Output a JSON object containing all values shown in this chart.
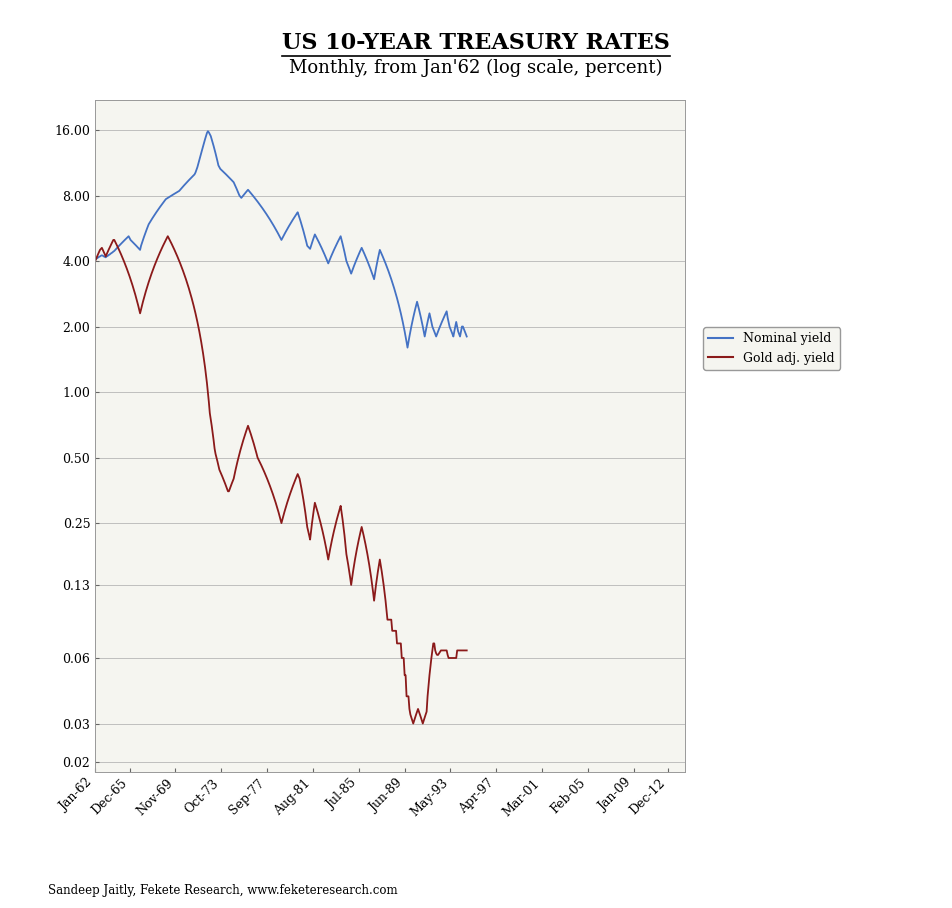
{
  "title": "US 10-YEAR TREASURY RATES",
  "subtitle": "Monthly, from Jan'62 (log scale, percent)",
  "footnote": "Sandeep Jaitly, Fekete Research, www.feketeresearch.com",
  "title_fontsize": 16,
  "subtitle_fontsize": 13,
  "yticks": [
    0.02,
    0.03,
    0.06,
    0.13,
    0.25,
    0.5,
    1.0,
    2.0,
    4.0,
    8.0,
    16.0
  ],
  "ytick_labels": [
    "0.02",
    "0.03",
    "0.06",
    "0.13",
    "0.25",
    "0.50",
    "1.00",
    "2.00",
    "4.00",
    "8.00",
    "16.00"
  ],
  "ylim_log": [
    0.018,
    22.0
  ],
  "xtick_positions": [
    1962,
    1965,
    1969,
    1973,
    1977,
    1981,
    1985,
    1989,
    1993,
    1997,
    2001,
    2005,
    2009,
    2012
  ],
  "xtick_labels": [
    "Jan-62",
    "Dec-65",
    "Nov-69",
    "Oct-73",
    "Sep-77",
    "Aug-81",
    "Jul-85",
    "Jun-89",
    "May-93",
    "Apr-97",
    "Mar-01",
    "Feb-05",
    "Jan-09",
    "Dec-12"
  ],
  "nominal_color": "#4472C4",
  "gold_color": "#8B1A1A",
  "nominal_label": "Nominal yield",
  "gold_label": "Gold adj. yield",
  "line_width": 1.3,
  "background_color": "#FFFFFF",
  "plot_bg_color": "#F5F5F0",
  "nominal_yield": [
    4.06,
    4.1,
    4.12,
    4.15,
    4.18,
    4.2,
    4.23,
    4.25,
    4.23,
    4.2,
    4.18,
    4.16,
    4.2,
    4.22,
    4.26,
    4.28,
    4.32,
    4.35,
    4.38,
    4.42,
    4.45,
    4.5,
    4.55,
    4.6,
    4.65,
    4.7,
    4.75,
    4.8,
    4.85,
    4.9,
    4.95,
    5.0,
    5.05,
    5.1,
    5.15,
    5.2,
    5.1,
    5.0,
    4.95,
    4.9,
    4.85,
    4.8,
    4.75,
    4.7,
    4.65,
    4.6,
    4.55,
    4.5,
    4.7,
    4.85,
    5.0,
    5.15,
    5.3,
    5.45,
    5.6,
    5.75,
    5.9,
    6.0,
    6.1,
    6.2,
    6.3,
    6.4,
    6.5,
    6.6,
    6.7,
    6.8,
    6.9,
    7.0,
    7.1,
    7.2,
    7.3,
    7.4,
    7.5,
    7.6,
    7.7,
    7.75,
    7.8,
    7.85,
    7.9,
    7.95,
    8.0,
    8.05,
    8.1,
    8.15,
    8.2,
    8.25,
    8.3,
    8.35,
    8.4,
    8.5,
    8.6,
    8.7,
    8.8,
    8.9,
    9.0,
    9.1,
    9.2,
    9.3,
    9.4,
    9.5,
    9.6,
    9.7,
    9.8,
    9.9,
    10.0,
    10.2,
    10.5,
    10.8,
    11.2,
    11.6,
    12.0,
    12.5,
    13.0,
    13.5,
    14.0,
    14.5,
    15.0,
    15.5,
    15.8,
    15.6,
    15.3,
    15.0,
    14.5,
    14.0,
    13.5,
    13.0,
    12.5,
    12.0,
    11.5,
    11.0,
    10.8,
    10.6,
    10.5,
    10.4,
    10.3,
    10.2,
    10.1,
    10.0,
    9.9,
    9.8,
    9.7,
    9.6,
    9.5,
    9.4,
    9.3,
    9.2,
    9.0,
    8.8,
    8.6,
    8.4,
    8.2,
    8.0,
    7.9,
    7.8,
    7.9,
    8.0,
    8.1,
    8.2,
    8.3,
    8.4,
    8.5,
    8.4,
    8.3,
    8.2,
    8.1,
    8.0,
    7.9,
    7.8,
    7.7,
    7.6,
    7.5,
    7.4,
    7.3,
    7.2,
    7.1,
    7.0,
    6.9,
    6.8,
    6.7,
    6.6,
    6.5,
    6.4,
    6.3,
    6.2,
    6.1,
    6.0,
    5.9,
    5.8,
    5.7,
    5.6,
    5.5,
    5.4,
    5.3,
    5.2,
    5.1,
    5.0,
    5.1,
    5.2,
    5.3,
    5.4,
    5.5,
    5.6,
    5.7,
    5.8,
    5.9,
    6.0,
    6.1,
    6.2,
    6.3,
    6.4,
    6.5,
    6.6,
    6.7,
    6.5,
    6.3,
    6.1,
    5.9,
    5.7,
    5.5,
    5.3,
    5.1,
    4.9,
    4.7,
    4.65,
    4.6,
    4.55,
    4.7,
    4.85,
    5.0,
    5.15,
    5.3,
    5.2,
    5.1,
    5.0,
    4.9,
    4.8,
    4.7,
    4.6,
    4.5,
    4.4,
    4.3,
    4.2,
    4.1,
    4.0,
    3.9,
    4.0,
    4.1,
    4.2,
    4.3,
    4.4,
    4.5,
    4.6,
    4.7,
    4.8,
    4.9,
    5.0,
    5.1,
    5.2,
    5.0,
    4.8,
    4.6,
    4.4,
    4.2,
    4.0,
    3.9,
    3.8,
    3.7,
    3.6,
    3.5,
    3.6,
    3.7,
    3.8,
    3.9,
    4.0,
    4.1,
    4.2,
    4.3,
    4.4,
    4.5,
    4.6,
    4.5,
    4.4,
    4.3,
    4.2,
    4.1,
    4.0,
    3.9,
    3.8,
    3.7,
    3.6,
    3.5,
    3.4,
    3.3,
    3.5,
    3.7,
    3.9,
    4.1,
    4.3,
    4.5,
    4.4,
    4.3,
    4.2,
    4.1,
    4.0,
    3.9,
    3.8,
    3.7,
    3.6,
    3.5,
    3.4,
    3.3,
    3.2,
    3.1,
    3.0,
    2.9,
    2.8,
    2.7,
    2.6,
    2.5,
    2.4,
    2.3,
    2.2,
    2.1,
    2.0,
    1.9,
    1.8,
    1.7,
    1.6,
    1.7,
    1.8,
    1.9,
    2.0,
    2.1,
    2.2,
    2.3,
    2.4,
    2.5,
    2.6,
    2.5,
    2.4,
    2.3,
    2.2,
    2.1,
    2.0,
    1.9,
    1.8,
    1.9,
    2.0,
    2.1,
    2.2,
    2.3,
    2.2,
    2.1,
    2.0,
    1.95,
    1.9,
    1.85,
    1.8,
    1.85,
    1.9,
    1.95,
    2.0,
    2.05,
    2.1,
    2.15,
    2.2,
    2.25,
    2.3,
    2.35,
    2.2,
    2.1,
    2.0,
    1.95,
    1.9,
    1.85,
    1.8,
    1.9,
    2.0,
    2.1,
    2.0,
    1.9,
    1.85,
    1.8,
    1.9,
    2.0,
    2.0,
    1.95,
    1.9,
    1.85,
    1.8
  ],
  "gold_yield": [
    4.0,
    4.1,
    4.2,
    4.3,
    4.4,
    4.5,
    4.55,
    4.6,
    4.5,
    4.4,
    4.3,
    4.2,
    4.3,
    4.4,
    4.5,
    4.6,
    4.7,
    4.8,
    4.9,
    5.0,
    5.0,
    4.9,
    4.8,
    4.7,
    4.6,
    4.5,
    4.4,
    4.3,
    4.2,
    4.1,
    4.0,
    3.9,
    3.8,
    3.7,
    3.6,
    3.5,
    3.4,
    3.3,
    3.2,
    3.1,
    3.0,
    2.9,
    2.8,
    2.7,
    2.6,
    2.5,
    2.4,
    2.3,
    2.4,
    2.5,
    2.6,
    2.7,
    2.8,
    2.9,
    3.0,
    3.1,
    3.2,
    3.3,
    3.4,
    3.5,
    3.6,
    3.7,
    3.8,
    3.9,
    4.0,
    4.1,
    4.2,
    4.3,
    4.4,
    4.5,
    4.6,
    4.7,
    4.8,
    4.9,
    5.0,
    5.1,
    5.2,
    5.1,
    5.0,
    4.9,
    4.8,
    4.7,
    4.6,
    4.5,
    4.4,
    4.3,
    4.2,
    4.1,
    4.0,
    3.9,
    3.8,
    3.7,
    3.6,
    3.5,
    3.4,
    3.3,
    3.2,
    3.1,
    3.0,
    2.9,
    2.8,
    2.7,
    2.6,
    2.5,
    2.4,
    2.3,
    2.2,
    2.1,
    2.0,
    1.9,
    1.8,
    1.7,
    1.6,
    1.5,
    1.4,
    1.3,
    1.2,
    1.1,
    1.0,
    0.9,
    0.8,
    0.75,
    0.7,
    0.65,
    0.6,
    0.55,
    0.52,
    0.5,
    0.48,
    0.46,
    0.44,
    0.43,
    0.42,
    0.41,
    0.4,
    0.39,
    0.38,
    0.37,
    0.36,
    0.35,
    0.35,
    0.36,
    0.37,
    0.38,
    0.39,
    0.4,
    0.42,
    0.44,
    0.46,
    0.48,
    0.5,
    0.52,
    0.54,
    0.56,
    0.58,
    0.6,
    0.62,
    0.64,
    0.66,
    0.68,
    0.7,
    0.68,
    0.66,
    0.64,
    0.62,
    0.6,
    0.58,
    0.56,
    0.54,
    0.52,
    0.5,
    0.49,
    0.48,
    0.47,
    0.46,
    0.45,
    0.44,
    0.43,
    0.42,
    0.41,
    0.4,
    0.39,
    0.38,
    0.37,
    0.36,
    0.35,
    0.34,
    0.33,
    0.32,
    0.31,
    0.3,
    0.29,
    0.28,
    0.27,
    0.26,
    0.25,
    0.26,
    0.27,
    0.28,
    0.29,
    0.3,
    0.31,
    0.32,
    0.33,
    0.34,
    0.35,
    0.36,
    0.37,
    0.38,
    0.39,
    0.4,
    0.41,
    0.42,
    0.41,
    0.4,
    0.38,
    0.36,
    0.34,
    0.32,
    0.3,
    0.28,
    0.26,
    0.24,
    0.23,
    0.22,
    0.21,
    0.23,
    0.25,
    0.27,
    0.29,
    0.31,
    0.3,
    0.29,
    0.28,
    0.27,
    0.26,
    0.25,
    0.24,
    0.23,
    0.22,
    0.21,
    0.2,
    0.19,
    0.18,
    0.17,
    0.18,
    0.19,
    0.2,
    0.21,
    0.22,
    0.23,
    0.24,
    0.25,
    0.26,
    0.27,
    0.28,
    0.29,
    0.3,
    0.28,
    0.26,
    0.24,
    0.22,
    0.2,
    0.18,
    0.17,
    0.16,
    0.15,
    0.14,
    0.13,
    0.14,
    0.15,
    0.16,
    0.17,
    0.18,
    0.19,
    0.2,
    0.21,
    0.22,
    0.23,
    0.24,
    0.23,
    0.22,
    0.21,
    0.2,
    0.19,
    0.18,
    0.17,
    0.16,
    0.15,
    0.14,
    0.13,
    0.12,
    0.11,
    0.12,
    0.13,
    0.14,
    0.15,
    0.16,
    0.17,
    0.16,
    0.15,
    0.14,
    0.13,
    0.12,
    0.11,
    0.1,
    0.09,
    0.09,
    0.09,
    0.09,
    0.09,
    0.08,
    0.08,
    0.08,
    0.08,
    0.08,
    0.07,
    0.07,
    0.07,
    0.07,
    0.07,
    0.06,
    0.06,
    0.06,
    0.05,
    0.05,
    0.04,
    0.04,
    0.04,
    0.035,
    0.033,
    0.032,
    0.031,
    0.03,
    0.031,
    0.032,
    0.033,
    0.034,
    0.035,
    0.034,
    0.033,
    0.032,
    0.031,
    0.03,
    0.031,
    0.032,
    0.033,
    0.034,
    0.04,
    0.045,
    0.05,
    0.055,
    0.06,
    0.065,
    0.07,
    0.07,
    0.065,
    0.063,
    0.062,
    0.062,
    0.063,
    0.064,
    0.065,
    0.065,
    0.065,
    0.065,
    0.065,
    0.065,
    0.065,
    0.062,
    0.06,
    0.06,
    0.06,
    0.06,
    0.06,
    0.06,
    0.06,
    0.06,
    0.06,
    0.065,
    0.065,
    0.065,
    0.065,
    0.065,
    0.065,
    0.065,
    0.065,
    0.065,
    0.065,
    0.065
  ]
}
